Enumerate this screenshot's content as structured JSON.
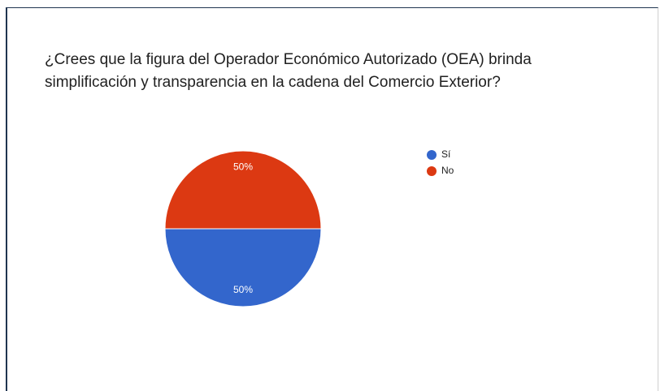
{
  "chart_data": {
    "type": "pie",
    "title": "¿Crees que la figura del Operador Económico Autorizado (OEA) brinda simplificación y transparencia en la cadena del Comercio Exterior?",
    "categories": [
      "Sí",
      "No"
    ],
    "values": [
      50,
      50
    ],
    "value_labels": [
      "50%",
      "50%"
    ],
    "colors": [
      "#3366cc",
      "#dc3912"
    ],
    "legend": "right"
  }
}
